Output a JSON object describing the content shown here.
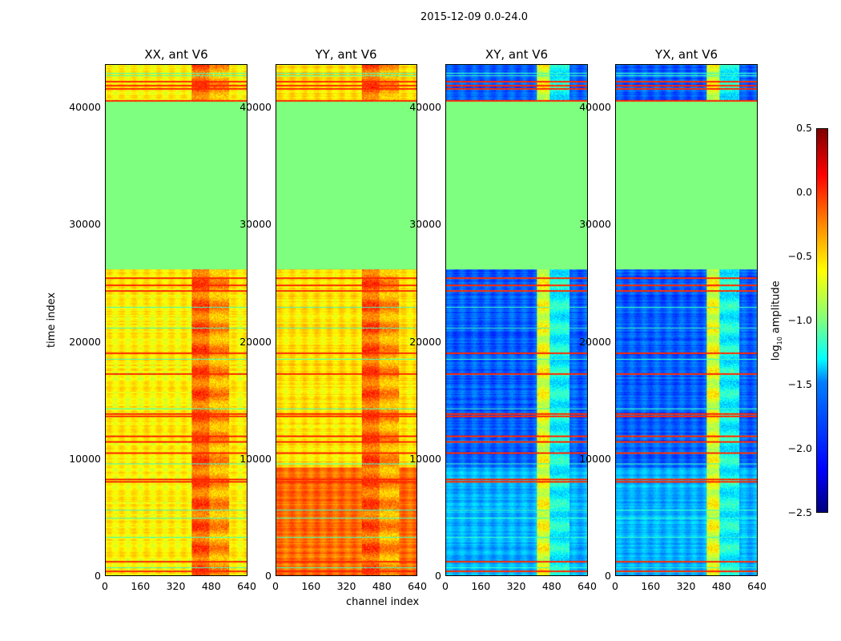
{
  "figure_title": "2015-12-09 0.0-24.0",
  "chart_data": {
    "type": "heatmap",
    "title": "2015-12-09 0.0-24.0",
    "xlabel": "channel index",
    "ylabel": "time index",
    "xlim": [
      0,
      640
    ],
    "ylim": [
      0,
      43700
    ],
    "xticks": [
      "0",
      "160",
      "320",
      "480",
      "640"
    ],
    "yticks": [
      "0",
      "10000",
      "20000",
      "30000",
      "40000"
    ],
    "colorbar": {
      "label": "log10 amplitude",
      "label_main": "log",
      "label_sub": "10",
      "label_rest": " amplitude",
      "range": [
        -2.5,
        0.5
      ],
      "ticks": [
        "0.5",
        "0.0",
        "−0.5",
        "−1.0",
        "−1.5",
        "−2.0",
        "−2.5"
      ],
      "colormap": "jet"
    },
    "flagged_time_range": [
      26200,
      40700
    ],
    "flagged_value": -1.0,
    "red_lines": [
      42300,
      42000,
      41700,
      40700,
      25500,
      24900,
      24400,
      19100,
      17300,
      13900,
      13700,
      12000,
      11500,
      10500,
      8300,
      8100,
      1200,
      400
    ],
    "cyan_lines": [
      43000,
      42800,
      23000,
      21200,
      18500,
      14300,
      9600,
      5600,
      4900,
      3300,
      700
    ],
    "panels": [
      {
        "title": "XX, ant V6",
        "base": -0.6,
        "band": [
          {
            "ch": [
              390,
              470
            ],
            "level": -0.15
          },
          {
            "ch": [
              470,
              560
            ],
            "level": -0.35
          }
        ],
        "low_segment": null
      },
      {
        "title": "YY, ant V6",
        "base": -0.55,
        "band": [
          {
            "ch": [
              390,
              470
            ],
            "level": -0.15
          },
          {
            "ch": [
              470,
              560
            ],
            "level": -0.35
          }
        ],
        "low_segment": {
          "time": [
            0,
            9300
          ],
          "level": -0.2
        }
      },
      {
        "title": "XY, ant V6",
        "base": -1.85,
        "band": [
          {
            "ch": [
              410,
              470
            ],
            "level": -0.7
          },
          {
            "ch": [
              470,
              560
            ],
            "level": -1.35
          }
        ],
        "low_segment": {
          "time": [
            0,
            9300
          ],
          "level": -1.6
        }
      },
      {
        "title": "YX, ant V6",
        "base": -1.85,
        "band": [
          {
            "ch": [
              410,
              470
            ],
            "level": -0.7
          },
          {
            "ch": [
              470,
              560
            ],
            "level": -1.35
          }
        ],
        "low_segment": {
          "time": [
            0,
            9300
          ],
          "level": -1.6
        }
      }
    ]
  }
}
